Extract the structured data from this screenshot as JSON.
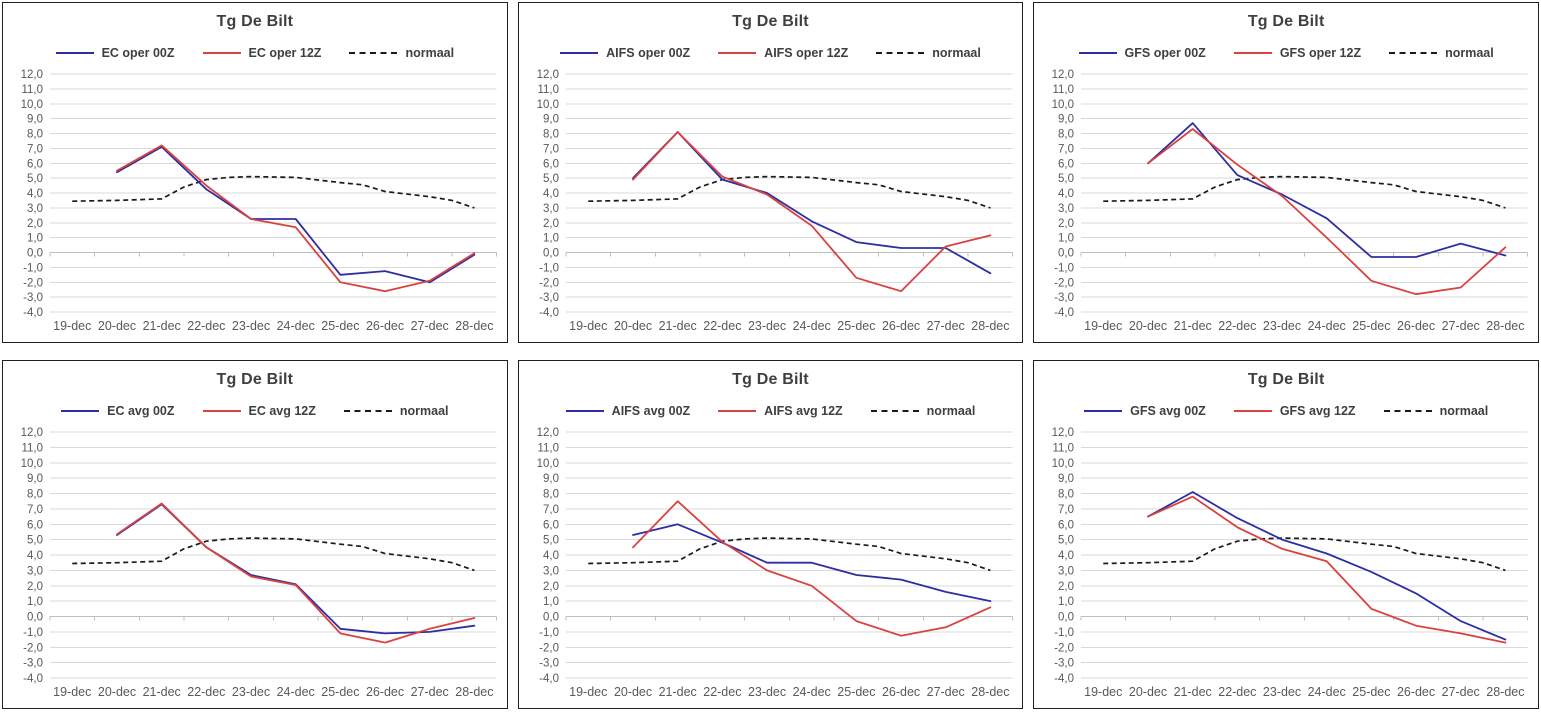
{
  "colors": {
    "series_blue": "#2E2EA3",
    "series_red": "#D9423E",
    "normaal_black": "#1A1A1A",
    "gridline": "#D9D9D9",
    "axis_line": "#BFBFBF",
    "axis_text": "#595959",
    "heading_text": "#3F3F3F",
    "panel_border": "#1F1F1F",
    "background": "#FFFFFF"
  },
  "axes": {
    "categories": [
      "19-dec",
      "20-dec",
      "21-dec",
      "22-dec",
      "23-dec",
      "24-dec",
      "25-dec",
      "26-dec",
      "27-dec",
      "28-dec"
    ],
    "ymin": -4,
    "ymax": 12,
    "ystep": 1,
    "ytick_labels": [
      "12,0",
      "11,0",
      "10,0",
      "9,0",
      "8,0",
      "7,0",
      "6,0",
      "5,0",
      "4,0",
      "3,0",
      "2,0",
      "1,0",
      "0,0",
      "-1,0",
      "-2,0",
      "-3,0",
      "-4,0"
    ],
    "grid": true,
    "legend_position": "top"
  },
  "normaal_curve": {
    "comment_x_units": "category index: 0 = 19-dec ... 9 = 28-dec",
    "x": [
      0,
      1,
      2,
      2.5,
      3,
      3.5,
      4,
      5,
      6,
      6.5,
      7,
      8,
      8.5,
      9
    ],
    "values": [
      3.45,
      3.5,
      3.6,
      4.4,
      4.9,
      5.05,
      5.1,
      5.05,
      4.7,
      4.55,
      4.1,
      3.75,
      3.5,
      3.0
    ]
  },
  "chart_data": [
    {
      "type": "line",
      "title": "Tg De Bilt",
      "x_start": 1,
      "series": [
        {
          "name": "EC oper 00Z",
          "color": "#2E2EA3",
          "values": [
            5.4,
            7.1,
            4.25,
            2.25,
            2.25,
            -1.5,
            -1.25,
            -2.0,
            -0.15
          ]
        },
        {
          "name": "EC oper 12Z",
          "color": "#D9423E",
          "values": [
            5.5,
            7.2,
            4.5,
            2.25,
            1.7,
            -2.0,
            -2.6,
            -1.9,
            -0.05
          ]
        },
        {
          "name": "normaal",
          "color": "#1A1A1A",
          "dashed": true,
          "use": "normaal_curve"
        }
      ]
    },
    {
      "type": "line",
      "title": "Tg De Bilt",
      "x_start": 1,
      "series": [
        {
          "name": "AIFS oper 00Z",
          "color": "#2E2EA3",
          "values": [
            5.0,
            8.1,
            4.9,
            4.0,
            2.1,
            0.7,
            0.3,
            0.3,
            -1.4
          ]
        },
        {
          "name": "AIFS oper 12Z",
          "color": "#D9423E",
          "values": [
            4.9,
            8.1,
            5.1,
            3.9,
            1.8,
            -1.7,
            -2.6,
            0.4,
            1.15
          ]
        },
        {
          "name": "normaal",
          "color": "#1A1A1A",
          "dashed": true,
          "use": "normaal_curve"
        }
      ]
    },
    {
      "type": "line",
      "title": "Tg De Bilt",
      "x_start": 1,
      "series": [
        {
          "name": "GFS oper 00Z",
          "color": "#2E2EA3",
          "values": [
            6.0,
            8.7,
            5.2,
            3.9,
            2.3,
            -0.3,
            -0.3,
            0.6,
            -0.2
          ]
        },
        {
          "name": "GFS oper 12Z",
          "color": "#D9423E",
          "values": [
            6.0,
            8.3,
            5.9,
            3.8,
            1.0,
            -1.9,
            -2.8,
            -2.35,
            0.35
          ]
        },
        {
          "name": "normaal",
          "color": "#1A1A1A",
          "dashed": true,
          "use": "normaal_curve"
        }
      ]
    },
    {
      "type": "line",
      "title": "Tg De Bilt",
      "x_start": 1,
      "series": [
        {
          "name": "EC avg 00Z",
          "color": "#2E2EA3",
          "values": [
            5.3,
            7.3,
            4.5,
            2.7,
            2.1,
            -0.8,
            -1.1,
            -1.0,
            -0.6
          ]
        },
        {
          "name": "EC avg 12Z",
          "color": "#D9423E",
          "values": [
            5.35,
            7.35,
            4.5,
            2.6,
            2.05,
            -1.1,
            -1.7,
            -0.8,
            -0.1
          ]
        },
        {
          "name": "normaal",
          "color": "#1A1A1A",
          "dashed": true,
          "use": "normaal_curve"
        }
      ]
    },
    {
      "type": "line",
      "title": "Tg De Bilt",
      "x_start": 1,
      "series": [
        {
          "name": "AIFS avg 00Z",
          "color": "#2E2EA3",
          "values": [
            5.3,
            6.0,
            4.8,
            3.5,
            3.5,
            2.7,
            2.4,
            1.6,
            1.0
          ]
        },
        {
          "name": "AIFS avg 12Z",
          "color": "#D9423E",
          "values": [
            4.5,
            7.5,
            4.85,
            3.0,
            2.0,
            -0.3,
            -1.25,
            -0.7,
            0.6
          ]
        },
        {
          "name": "normaal",
          "color": "#1A1A1A",
          "dashed": true,
          "use": "normaal_curve"
        }
      ]
    },
    {
      "type": "line",
      "title": "Tg De Bilt",
      "x_start": 1,
      "series": [
        {
          "name": "GFS avg 00Z",
          "color": "#2E2EA3",
          "values": [
            6.5,
            8.1,
            6.4,
            5.0,
            4.1,
            2.9,
            1.5,
            -0.3,
            -1.5
          ]
        },
        {
          "name": "GFS avg 12Z",
          "color": "#D9423E",
          "values": [
            6.5,
            7.8,
            5.8,
            4.4,
            3.6,
            0.5,
            -0.6,
            -1.1,
            -1.7
          ]
        },
        {
          "name": "normaal",
          "color": "#1A1A1A",
          "dashed": true,
          "use": "normaal_curve"
        }
      ]
    }
  ]
}
